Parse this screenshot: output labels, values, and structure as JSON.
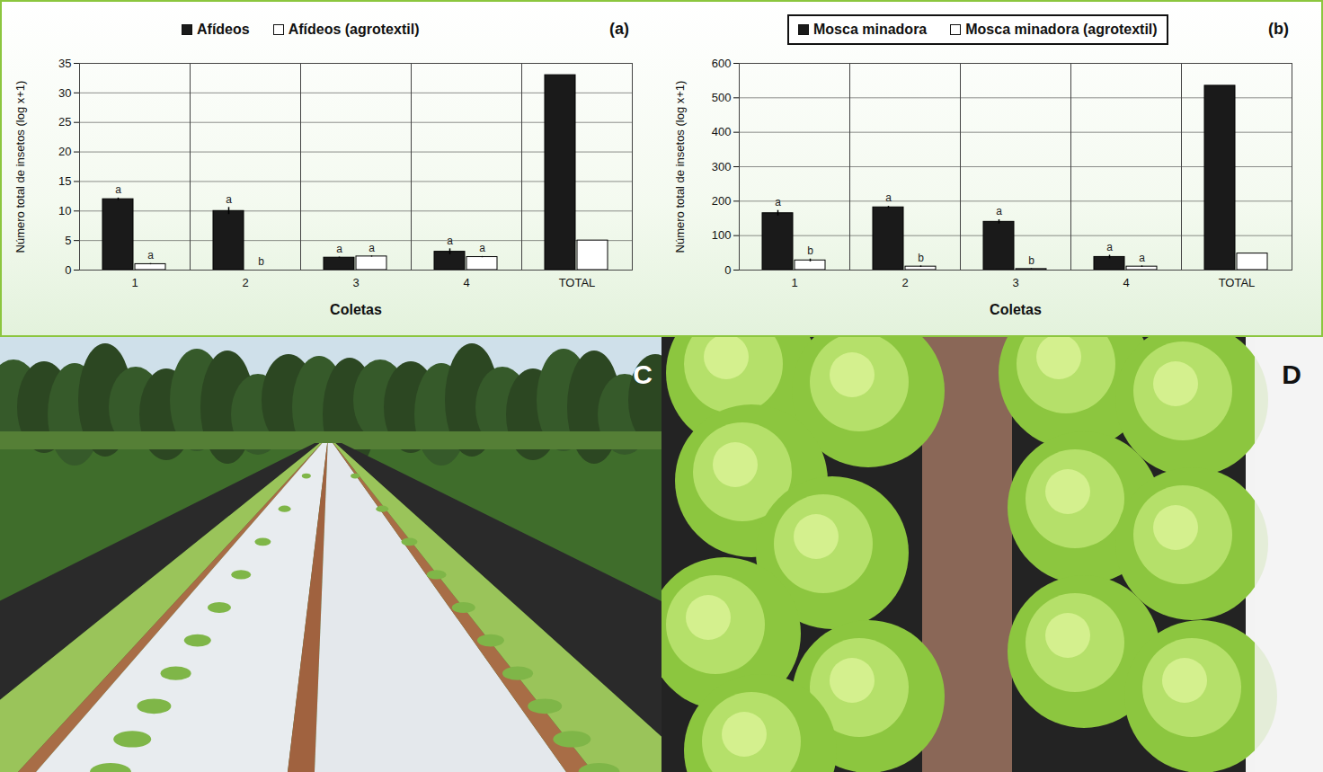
{
  "chart_data": [
    {
      "type": "bar",
      "panel_label": "(a)",
      "x_label": "Coletas",
      "y_label": "Número total de insetos (log x+1)",
      "categories": [
        "1",
        "2",
        "3",
        "4",
        "TOTAL"
      ],
      "series": [
        {
          "name": "Afídeos",
          "color": "#1a1a1a",
          "values": [
            12,
            10,
            2.1,
            3.1,
            33
          ],
          "errors": [
            0.2,
            0.6,
            0.1,
            0.5,
            null
          ],
          "letters": [
            "a",
            "a",
            "a",
            "a",
            null
          ]
        },
        {
          "name": "Afídeos (agrotextil)",
          "color": "#ffffff",
          "values": [
            1,
            0,
            2.3,
            2.2,
            5
          ],
          "errors": [
            0.1,
            null,
            0.1,
            0.1,
            null
          ],
          "letters": [
            "a",
            "b",
            "a",
            "a",
            null
          ]
        }
      ],
      "ylim": [
        0,
        35
      ],
      "yticks": [
        0,
        5,
        10,
        15,
        20,
        25,
        30,
        35
      ],
      "grid": true,
      "legend": "top"
    },
    {
      "type": "bar",
      "panel_label": "(b)",
      "x_label": "Coletas",
      "y_label": "Número total de insetos (log x+1)",
      "categories": [
        "1",
        "2",
        "3",
        "4",
        "TOTAL"
      ],
      "series": [
        {
          "name": "Mosca minadora",
          "color": "#1a1a1a",
          "values": [
            165,
            182,
            140,
            38,
            535
          ],
          "errors": [
            8,
            3,
            6,
            5,
            null
          ],
          "letters": [
            "a",
            "a",
            "a",
            "a",
            null
          ]
        },
        {
          "name": "Mosca minadora (agrotextil)",
          "color": "#ffffff",
          "values": [
            28,
            10,
            3,
            10,
            48
          ],
          "errors": [
            4,
            2,
            1,
            2,
            null
          ],
          "letters": [
            "b",
            "b",
            "b",
            "a",
            null
          ]
        }
      ],
      "ylim": [
        0,
        600
      ],
      "yticks": [
        0,
        100,
        200,
        300,
        400,
        500,
        600
      ],
      "grid": true,
      "legend": "top"
    }
  ],
  "photos": [
    {
      "label": "C"
    },
    {
      "label": "D"
    }
  ]
}
